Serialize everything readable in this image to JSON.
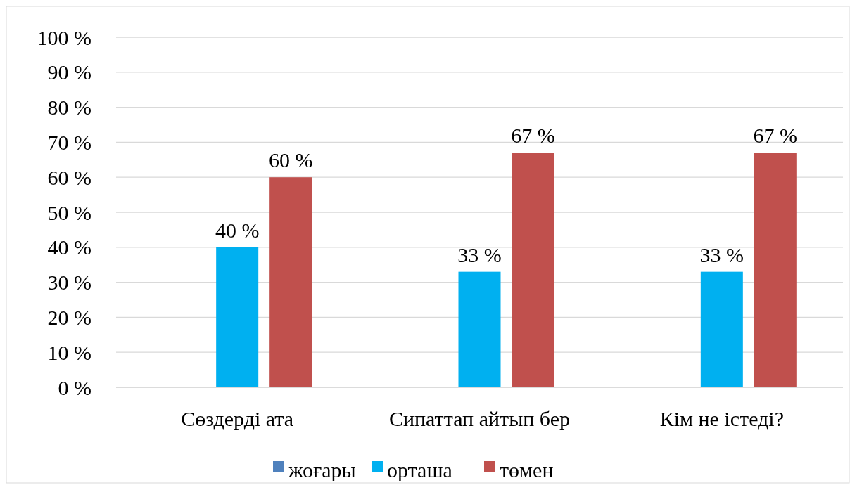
{
  "chart_data": {
    "type": "bar",
    "categories": [
      "Сөздерді ата",
      "Сипаттап айтып бер",
      "Кім не істеді?"
    ],
    "series": [
      {
        "name": "жоғары",
        "color": "#4f81bd",
        "values": [
          0,
          0,
          0
        ],
        "value_labels": [
          null,
          null,
          null
        ]
      },
      {
        "name": "орташа",
        "color": "#00b0f0",
        "values": [
          40,
          33,
          33
        ],
        "value_labels": [
          "40 %",
          "33 %",
          "33 %"
        ]
      },
      {
        "name": "төмен",
        "color": "#c0504d",
        "values": [
          60,
          67,
          67
        ],
        "value_labels": [
          "60 %",
          "67 %",
          "67 %"
        ]
      }
    ],
    "ylim": [
      0,
      100
    ],
    "yticks": [
      {
        "value": 0,
        "label": "0 %"
      },
      {
        "value": 10,
        "label": "10 %"
      },
      {
        "value": 20,
        "label": "20 %"
      },
      {
        "value": 30,
        "label": "30 %"
      },
      {
        "value": 40,
        "label": "40 %"
      },
      {
        "value": 50,
        "label": "50 %"
      },
      {
        "value": 60,
        "label": "60 %"
      },
      {
        "value": 70,
        "label": "70 %"
      },
      {
        "value": 80,
        "label": "80 %"
      },
      {
        "value": 90,
        "label": "90 %"
      },
      {
        "value": 100,
        "label": "100 %"
      }
    ],
    "grid": "y",
    "legend": "bottom"
  }
}
